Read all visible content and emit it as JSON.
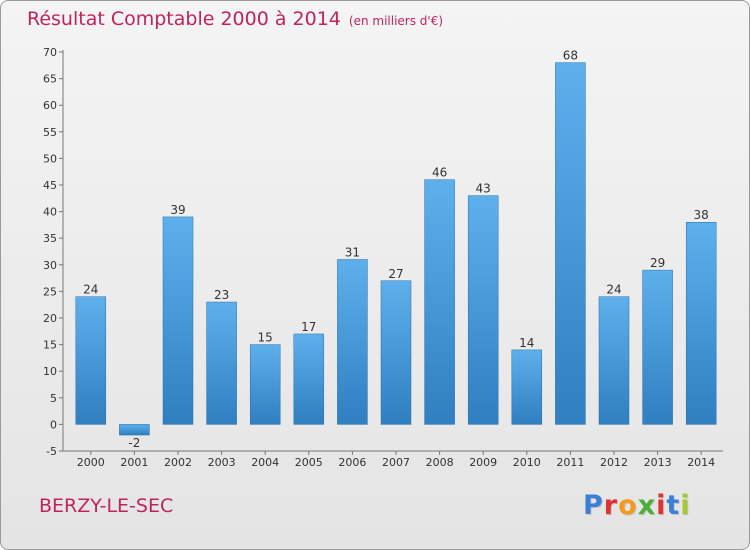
{
  "title": "Résultat Comptable 2000 à 2014",
  "subtitle": "(en milliers d'€)",
  "place_name": "BERZY-LE-SEC",
  "logo": {
    "letters": [
      "P",
      "r",
      "o",
      "x",
      "i",
      "t",
      "i"
    ],
    "colors": [
      "#3b7fd6",
      "#e2322f",
      "#f39a1e",
      "#4caf3a",
      "#e2322f",
      "#3b7fd6",
      "#a6c832"
    ]
  },
  "colors": {
    "bar_top": "#5eb0ec",
    "bar_bottom": "#2f7fc1",
    "text": "#c0245c"
  },
  "chart_data": {
    "type": "bar",
    "title": "Résultat Comptable 2000 à 2014",
    "subtitle": "(en milliers d'€)",
    "categories": [
      "2000",
      "2001",
      "2002",
      "2003",
      "2004",
      "2005",
      "2006",
      "2007",
      "2008",
      "2009",
      "2010",
      "2011",
      "2012",
      "2013",
      "2014"
    ],
    "values": [
      24,
      -2,
      39,
      23,
      15,
      17,
      31,
      27,
      46,
      43,
      14,
      68,
      24,
      29,
      38
    ],
    "ylim": [
      -5,
      70
    ],
    "yticks": [
      -5,
      0,
      5,
      10,
      15,
      20,
      25,
      30,
      35,
      40,
      45,
      50,
      55,
      60,
      65,
      70
    ],
    "grid": false,
    "data_labels": true
  }
}
